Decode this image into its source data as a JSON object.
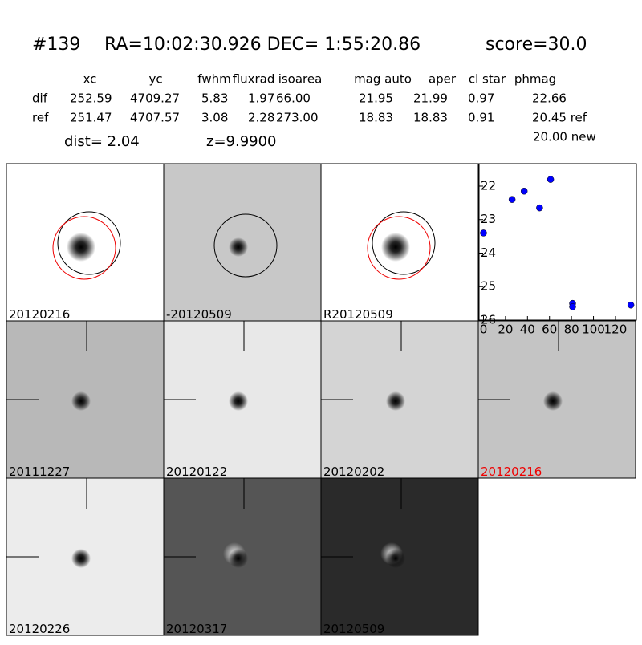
{
  "header": {
    "id": "#139",
    "coords": "RA=10:02:30.926 DEC= 1:55:20.86",
    "score": "score=30.0"
  },
  "table": {
    "columns": [
      "xc",
      "yc",
      "fwhm",
      "fluxrad",
      "isoarea",
      "mag auto",
      "aper",
      "cl star",
      "phmag"
    ],
    "rows": [
      [
        "dif",
        "252.59",
        "4709.27",
        "5.83",
        "1.97",
        "66.00",
        "21.95",
        "21.99",
        "0.97",
        "22.66"
      ],
      [
        "ref",
        "251.47",
        "4707.57",
        "3.08",
        "2.28",
        "273.00",
        "18.83",
        "18.83",
        "0.91",
        "20.45 ref"
      ]
    ],
    "extra": "20.00 new"
  },
  "dist": "dist=  2.04",
  "z": "z=9.9900",
  "panels": [
    "20120216",
    "-20120509",
    "R20120509",
    "20111227",
    "20120122",
    "20120202",
    "20120216",
    "20120226",
    "20120317",
    "20120509"
  ],
  "chart_data": {
    "type": "scatter",
    "color": "#0000ff",
    "x": [
      0,
      26,
      37,
      51,
      61,
      81,
      81,
      134
    ],
    "values": [
      23.4,
      22.4,
      22.15,
      22.65,
      21.8,
      25.5,
      25.6,
      25.55
    ],
    "xlim": [
      -4,
      139
    ],
    "ylim": [
      26,
      21.33
    ],
    "xticks": [
      0,
      20,
      40,
      60,
      80,
      100,
      120
    ],
    "yticks": [
      22,
      23,
      24,
      25,
      26
    ]
  }
}
